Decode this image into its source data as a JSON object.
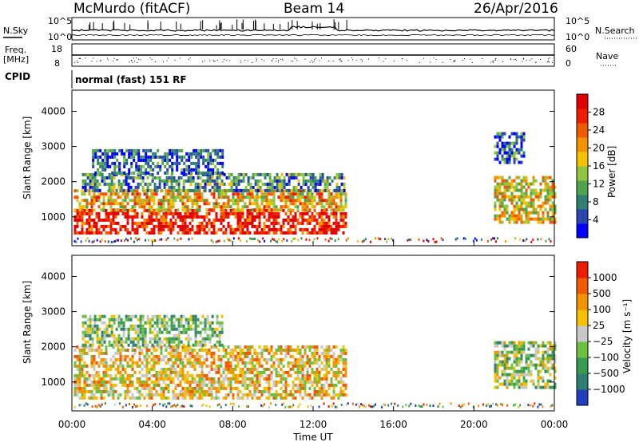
{
  "header": {
    "station": "McMurdo (fitACF)",
    "beam": "Beam 14",
    "date": "26/Apr/2016"
  },
  "status_panel": {
    "nsky_label": "N.Sky",
    "nsearch_label": "N.Search",
    "freq_label": "Freq.",
    "freq_unit": "[MHz]",
    "nave_label": "Nave",
    "cpid_label": "CPID",
    "cpid_value": "normal (fast) 151 RF",
    "noise_scale": {
      "top": "10^5",
      "bottom": "10^0"
    },
    "freq_scale": {
      "top": "18",
      "bottom": "8"
    },
    "nave_scale": {
      "top": "60",
      "bottom": "0"
    }
  },
  "chart_data": [
    {
      "type": "heatmap",
      "panel": "power",
      "ylabel": "Slant Range [km]",
      "ylim": [
        180,
        4600
      ],
      "yticks": [
        1000,
        2000,
        3000,
        4000
      ],
      "xlim_hours": [
        0,
        24
      ],
      "colorbar": {
        "label": "Power [dB]",
        "ticks": [
          "28",
          "24",
          "20",
          "16",
          "12",
          "8",
          "4"
        ],
        "colors": [
          "#0000ff",
          "#2a46b0",
          "#2f7f74",
          "#4ea54e",
          "#8ec63f",
          "#f2c200",
          "#f39300",
          "#f15a00",
          "#ee1c00",
          "#e00000"
        ]
      },
      "echo_regions": [
        {
          "start_h": 0.1,
          "end_h": 13.6,
          "lo_km": 500,
          "hi_km": 1150,
          "level": 0.9
        },
        {
          "start_h": 0.1,
          "end_h": 13.6,
          "lo_km": 1150,
          "hi_km": 1700,
          "level": 0.6
        },
        {
          "start_h": 0.5,
          "end_h": 13.6,
          "lo_km": 1700,
          "hi_km": 2200,
          "level": 0.3
        },
        {
          "start_h": 1.0,
          "end_h": 7.5,
          "lo_km": 2200,
          "hi_km": 2900,
          "level": 0.2
        },
        {
          "start_h": 21.0,
          "end_h": 24.0,
          "lo_km": 800,
          "hi_km": 2150,
          "level": 0.55
        },
        {
          "start_h": 21.0,
          "end_h": 22.5,
          "lo_km": 2500,
          "hi_km": 3400,
          "level": 0.2
        }
      ]
    },
    {
      "type": "heatmap",
      "panel": "velocity",
      "ylabel": "Slant Range [km]",
      "xlabel": "Time UT",
      "ylim": [
        180,
        4600
      ],
      "yticks": [
        1000,
        2000,
        3000,
        4000
      ],
      "xlim_hours": [
        0,
        24
      ],
      "xticks": [
        "00:00",
        "04:00",
        "08:00",
        "12:00",
        "16:00",
        "20:00",
        "00:00"
      ],
      "colorbar": {
        "label": "Velocity [m s⁻¹]",
        "ticks": [
          "1000",
          "500",
          "100",
          "25",
          "−25",
          "−100",
          "−500",
          "−1000"
        ],
        "colors": [
          "#2040c0",
          "#2f7f74",
          "#3a9a50",
          "#6cc040",
          "#c8c8c8",
          "#f5c000",
          "#f39300",
          "#f15a00",
          "#ee1c00"
        ]
      },
      "echo_regions": [
        {
          "start_h": 0.1,
          "end_h": 13.6,
          "lo_km": 500,
          "hi_km": 2000,
          "level": 0.6
        },
        {
          "start_h": 0.5,
          "end_h": 7.5,
          "lo_km": 2000,
          "hi_km": 2900,
          "level": 0.4
        },
        {
          "start_h": 21.0,
          "end_h": 24.0,
          "lo_km": 800,
          "hi_km": 2100,
          "level": 0.45
        }
      ]
    }
  ]
}
